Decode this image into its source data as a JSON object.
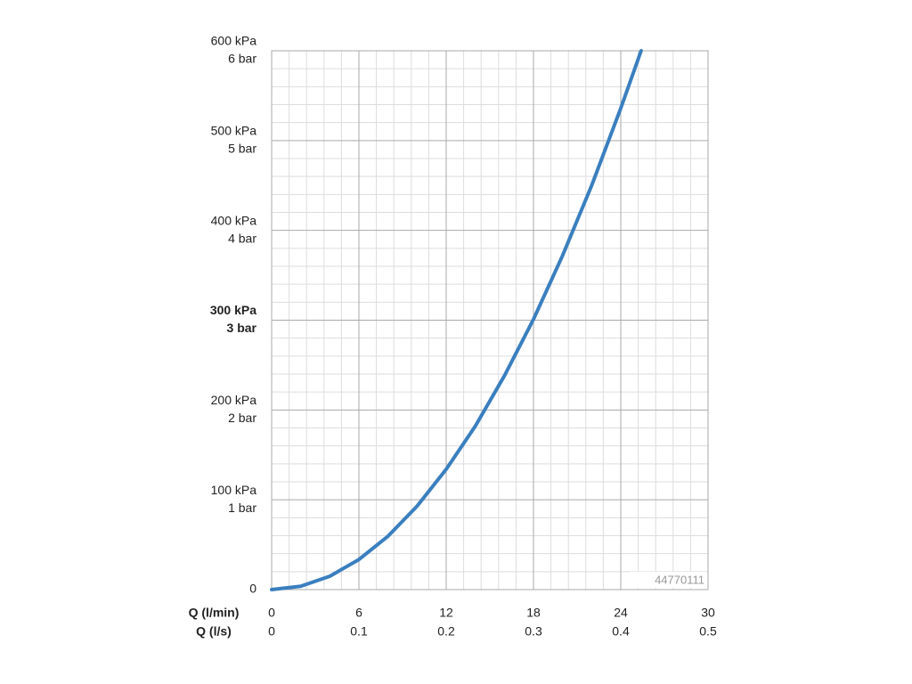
{
  "chart_data": {
    "type": "line",
    "xlabel": "Q (l/min)",
    "x2label": "Q (l/s)",
    "x": [
      0,
      2,
      4,
      6,
      8,
      10,
      12,
      14,
      16,
      18,
      20,
      22,
      24,
      25.4
    ],
    "series": [
      {
        "color": "#3a7fbf",
        "values": [
          0,
          3.7,
          14.9,
          33.5,
          59.5,
          93,
          134,
          182,
          238,
          301,
          372,
          450,
          536,
          600
        ]
      }
    ],
    "xlim": [
      0,
      30
    ],
    "xticks": [
      0,
      6,
      12,
      18,
      24,
      30
    ],
    "x2ticks": [
      {
        "value": 0,
        "label": "0"
      },
      {
        "value": 6,
        "label": "0.1"
      },
      {
        "value": 12,
        "label": "0.2"
      },
      {
        "value": 18,
        "label": "0.3"
      },
      {
        "value": 24,
        "label": "0.4"
      },
      {
        "value": 30,
        "label": "0.5"
      }
    ],
    "ylim": [
      0,
      600
    ],
    "yticks": [
      0,
      {
        "value": 100,
        "label": "100 kPa"
      },
      {
        "value": 200,
        "label": "200 kPa"
      },
      {
        "value": 300,
        "label": "300 kPa"
      },
      {
        "value": 400,
        "label": "400 kPa"
      },
      {
        "value": 500,
        "label": "500 kPa"
      },
      {
        "value": 600,
        "label": "600 kPa"
      }
    ],
    "bar_ticks": [
      {
        "value": 100,
        "label": "1 bar"
      },
      {
        "value": 200,
        "label": "2 bar"
      },
      {
        "value": 300,
        "label": "3 bar"
      },
      {
        "value": 400,
        "label": "4 bar"
      },
      {
        "value": 500,
        "label": "5 bar"
      },
      {
        "value": 600,
        "label": "6 bar"
      }
    ],
    "highlight_ytick": 300,
    "grid": true,
    "minor_divisions": 5,
    "watermark": "44770111"
  }
}
